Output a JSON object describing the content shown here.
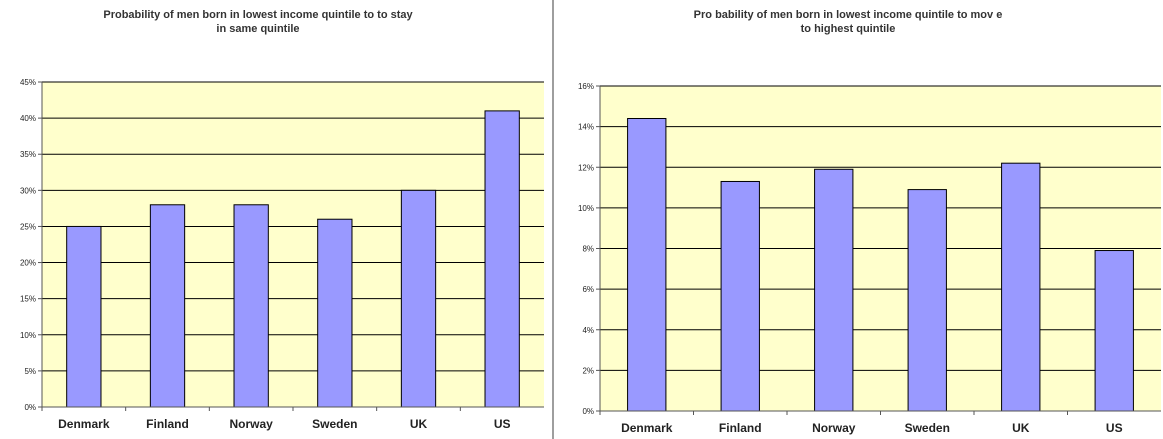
{
  "chart_data": [
    {
      "type": "bar",
      "title_line1": "Probability of men born in lowest income quintile to to stay",
      "title_line2": "in same quintile",
      "categories": [
        "Denmark",
        "Finland",
        "Norway",
        "Sweden",
        "UK",
        "US"
      ],
      "values": [
        25,
        28,
        28,
        26,
        30,
        41
      ],
      "ylim": [
        0,
        45
      ],
      "yticks": [
        "0%",
        "5%",
        "10%",
        "15%",
        "20%",
        "25%",
        "30%",
        "35%",
        "40%",
        "45%"
      ],
      "grid": true,
      "colors": {
        "bar": "#9999ff",
        "plot_bg": "#ffffcc",
        "bar_edge": "#000000"
      }
    },
    {
      "type": "bar",
      "title_line1": "Pro bability of men born in lowest income quintile to mov e",
      "title_line2": "to highest quintile",
      "categories": [
        "Denmark",
        "Finland",
        "Norway",
        "Sweden",
        "UK",
        "US"
      ],
      "values": [
        14.4,
        11.3,
        11.9,
        10.9,
        12.2,
        7.9
      ],
      "ylim": [
        0,
        16
      ],
      "yticks": [
        "0%",
        "2%",
        "4%",
        "6%",
        "8%",
        "10%",
        "12%",
        "14%",
        "16%"
      ],
      "grid": true,
      "colors": {
        "bar": "#9999ff",
        "plot_bg": "#ffffcc",
        "bar_edge": "#000000"
      }
    }
  ]
}
